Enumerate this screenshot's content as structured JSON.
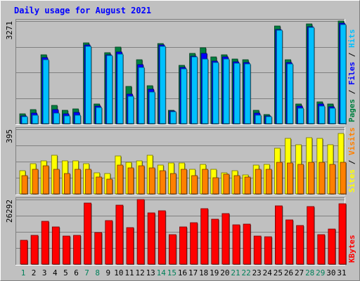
{
  "chart_data": {
    "type": "bar",
    "title": "Daily usage for August 2021",
    "days": [
      "1",
      "2",
      "3",
      "4",
      "5",
      "6",
      "7",
      "8",
      "9",
      "10",
      "11",
      "12",
      "13",
      "14",
      "15",
      "16",
      "17",
      "18",
      "19",
      "20",
      "21",
      "22",
      "23",
      "24",
      "25",
      "26",
      "27",
      "28",
      "29",
      "30",
      "31"
    ],
    "weekend_days": [
      "1",
      "7",
      "8",
      "14",
      "15",
      "21",
      "22",
      "28",
      "29"
    ],
    "panels": [
      {
        "name": "hits-files-pages",
        "scale_label": "3271",
        "ymax": 3271,
        "side_labels": [
          "Pages",
          "Files",
          "Hits"
        ],
        "series": [
          {
            "name": "Hits",
            "color": "#008040",
            "values": [
              310,
              440,
              2200,
              590,
              420,
              460,
              2580,
              630,
              2260,
              2440,
              1190,
              2030,
              1220,
              2550,
              430,
              1870,
              2240,
              2410,
              2120,
              2200,
              2060,
              2030,
              430,
              300,
              3110,
              2030,
              620,
              3180,
              700,
              620,
              3271
            ]
          },
          {
            "name": "Files",
            "color": "#0000ff",
            "values": [
              250,
              330,
              2100,
              440,
              310,
              350,
              2500,
              570,
              2200,
              2290,
              950,
              1890,
              1100,
              2500,
              400,
              1800,
              2160,
              2240,
              2000,
              2120,
              1970,
              1940,
              330,
              250,
              3000,
              1940,
              560,
              3100,
              620,
              540,
              3200
            ]
          },
          {
            "name": "Pages",
            "color": "#00c0ff",
            "values": [
              220,
              260,
              2040,
              330,
              250,
              280,
              2470,
              510,
              2170,
              2210,
              880,
              1800,
              1000,
              2470,
              370,
              1740,
              2130,
              2060,
              1940,
              2070,
              1930,
              1900,
              270,
              220,
              2970,
              1900,
              500,
              3070,
              560,
              500,
              3170
            ]
          }
        ]
      },
      {
        "name": "visits-sites",
        "scale_label": "395",
        "ymax": 395,
        "side_labels": [
          "Sites",
          "Visits"
        ],
        "series": [
          {
            "name": "Visits",
            "color": "#ffff00",
            "values": [
              140,
              185,
              200,
              235,
              200,
              200,
              185,
              130,
              125,
              230,
              195,
              200,
              235,
              175,
              190,
              190,
              150,
              180,
              150,
              130,
              140,
              115,
              175,
              180,
              280,
              340,
              300,
              345,
              340,
              300,
              370
            ]
          },
          {
            "name": "Sites",
            "color": "#ff8000",
            "values": [
              110,
              150,
              170,
              150,
              125,
              150,
              150,
              105,
              90,
              175,
              160,
              170,
              160,
              140,
              125,
              150,
              110,
              150,
              100,
              120,
              110,
              105,
              150,
              150,
              195,
              190,
              180,
              195,
              195,
              180,
              195
            ]
          }
        ]
      },
      {
        "name": "kbytes",
        "scale_label": "26292",
        "ymax": 26292,
        "side_labels": [
          "KBytes"
        ],
        "series": [
          {
            "name": "KBytes",
            "color": "#ff0000",
            "values": [
              9830,
              11730,
              17430,
              15070,
              11400,
              11730,
              24770,
              12720,
              17590,
              24120,
              14900,
              26292,
              20840,
              21660,
              12060,
              15250,
              16740,
              22650,
              18410,
              20670,
              15890,
              16230,
              11400,
              11070,
              23630,
              17920,
              15730,
              23300,
              12060,
              14240,
              24440
            ]
          }
        ]
      }
    ]
  }
}
